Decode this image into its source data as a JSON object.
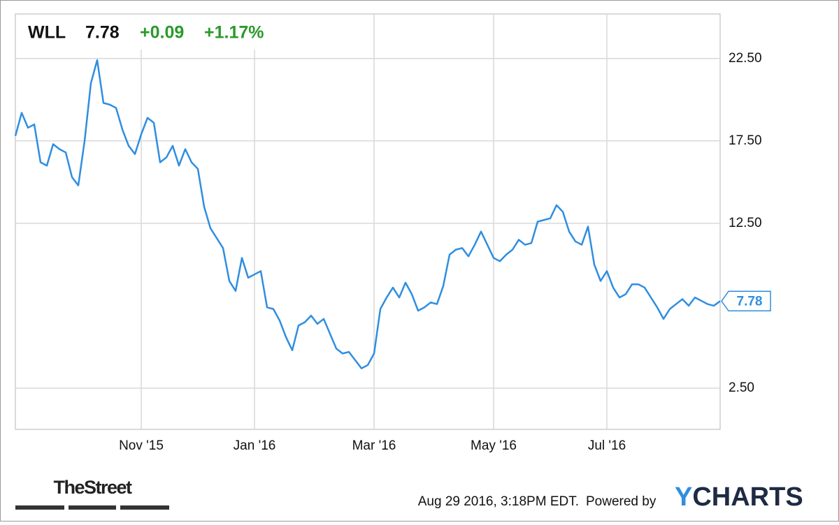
{
  "chart_data": {
    "type": "line",
    "ticker": "WLL",
    "price": "7.78",
    "change": "+0.09",
    "change_pct": "+1.17%",
    "categories": [
      null,
      null,
      null,
      null,
      null,
      null,
      null,
      null,
      null,
      null,
      null,
      null,
      null,
      null,
      null,
      null,
      null,
      null,
      null,
      null,
      "Nov '15",
      null,
      null,
      null,
      null,
      null,
      null,
      null,
      null,
      null,
      null,
      null,
      null,
      null,
      null,
      null,
      null,
      null,
      "Jan '16",
      null,
      null,
      null,
      null,
      null,
      null,
      null,
      null,
      null,
      null,
      null,
      null,
      null,
      null,
      null,
      null,
      null,
      null,
      "Mar '16",
      null,
      null,
      null,
      null,
      null,
      null,
      null,
      null,
      null,
      null,
      null,
      null,
      null,
      null,
      null,
      null,
      null,
      null,
      "May '16",
      null,
      null,
      null,
      null,
      null,
      null,
      null,
      null,
      null,
      null,
      null,
      null,
      null,
      null,
      null,
      null,
      null,
      "Jul '16",
      null,
      null,
      null,
      null,
      null,
      null,
      null,
      null,
      null,
      null,
      null,
      null,
      null,
      null,
      null,
      null,
      null,
      null
    ],
    "series": [
      {
        "name": "WLL",
        "color": "#2f8ee0",
        "values": [
          17.8,
          19.2,
          18.3,
          18.5,
          16.2,
          16.0,
          17.3,
          17.0,
          16.8,
          15.3,
          14.8,
          17.5,
          21.0,
          22.4,
          19.8,
          19.7,
          19.5,
          18.2,
          17.2,
          16.7,
          17.9,
          18.9,
          18.6,
          16.2,
          16.5,
          17.2,
          16.0,
          17.0,
          16.2,
          15.8,
          13.5,
          12.2,
          11.6,
          11.0,
          9.0,
          8.4,
          10.4,
          9.2,
          9.4,
          9.6,
          7.4,
          7.3,
          6.6,
          5.6,
          4.8,
          6.3,
          6.5,
          6.9,
          6.4,
          6.7,
          5.8,
          4.9,
          4.6,
          4.7,
          4.2,
          3.7,
          3.9,
          4.6,
          7.3,
          8.0,
          8.6,
          8.0,
          8.9,
          8.2,
          7.2,
          7.4,
          7.7,
          7.6,
          8.7,
          10.6,
          10.9,
          11.0,
          10.5,
          11.2,
          12.0,
          11.2,
          10.4,
          10.2,
          10.6,
          10.9,
          11.5,
          11.2,
          11.3,
          12.6,
          12.7,
          12.8,
          13.6,
          13.2,
          12.0,
          11.4,
          11.2,
          12.3,
          10.0,
          9.0,
          9.6,
          8.6,
          8.0,
          8.2,
          8.8,
          8.8,
          8.6,
          8.0,
          7.4,
          6.7,
          7.3,
          7.6,
          7.9,
          7.5,
          8.0,
          7.8,
          7.6,
          7.5,
          7.78
        ]
      }
    ],
    "ylim": [
      0,
      25.2
    ],
    "yticks": [
      {
        "value": 2.5,
        "label": "2.50"
      },
      {
        "value": 12.5,
        "label": "12.50"
      },
      {
        "value": 17.5,
        "label": "17.50"
      },
      {
        "value": 22.5,
        "label": "22.50"
      }
    ],
    "grid": true,
    "source_logo": "TheStreet",
    "timestamp": "Aug 29 2016, 3:18PM EDT.",
    "powered_by": "Powered by",
    "brand": "YCHARTS"
  }
}
